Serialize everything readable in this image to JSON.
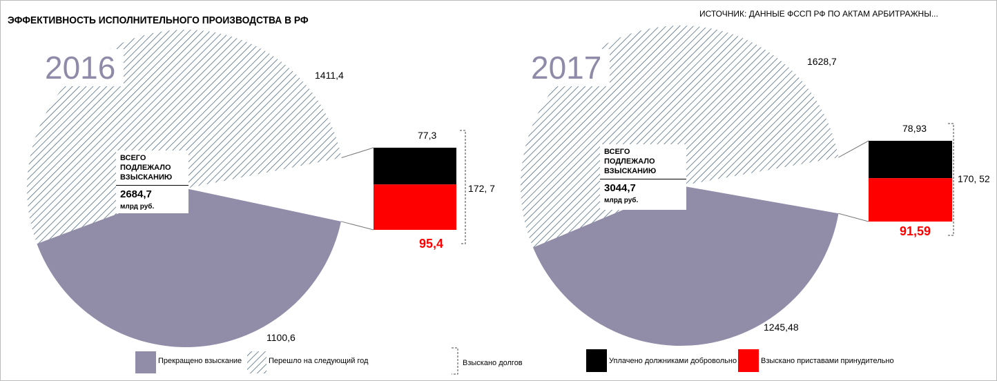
{
  "title": "ЭФФЕКТИВНОСТЬ ИСПОЛНИТЕЛЬНОГО ПРОИЗВОДСТВА В РФ",
  "source": "ИСТОЧНИК: ДАННЫЕ ФССП РФ ПО АКТАМ АРБИТРАЖНЫ...",
  "colors": {
    "stopped": "#918ca8",
    "hatch": "#4a6478",
    "voluntary": "#000000",
    "forced": "#ff0000"
  },
  "chart_data": [
    {
      "type": "pie",
      "title": "2016",
      "total_label": "ВСЕГО ПОДЛЕЖАЛО ВЗЫСКАНИЮ",
      "total": "2684,7",
      "unit": "млрд руб.",
      "slices": [
        {
          "name": "Прекращено взыскание",
          "value": 1100.6,
          "label": "1100,6"
        },
        {
          "name": "Перешло на следующий год",
          "value": 1411.4,
          "label": "1411,4"
        },
        {
          "name": "Взыскано долгов",
          "value": 172.7,
          "label": "172, 7"
        }
      ],
      "bar": [
        {
          "name": "Уплачено должниками добровольно",
          "value": 77.3,
          "label": "77,3"
        },
        {
          "name": "Взыскано приставами принудительно",
          "value": 95.4,
          "label": "95,4"
        }
      ]
    },
    {
      "type": "pie",
      "title": "2017",
      "total_label": "ВСЕГО ПОДЛЕЖАЛО ВЗЫСКАНИЮ",
      "total": "3044,7",
      "unit": "млрд руб.",
      "slices": [
        {
          "name": "Прекращено взыскание",
          "value": 1245.48,
          "label": "1245,48"
        },
        {
          "name": "Перешло на следующий год",
          "value": 1628.7,
          "label": "1628,7"
        },
        {
          "name": "Взыскано долгов",
          "value": 170.52,
          "label": "170, 52"
        }
      ],
      "bar": [
        {
          "name": "Уплачено должниками добровольно",
          "value": 78.93,
          "label": "78,93"
        },
        {
          "name": "Взыскано приставами принудительно",
          "value": 91.59,
          "label": "91,59"
        }
      ]
    }
  ],
  "legend": [
    "Прекращено взыскание",
    "Перешло на следующий год",
    "Взыскано долгов",
    "Уплачено должниками добровольно",
    "Взыскано приставами принудительно"
  ]
}
